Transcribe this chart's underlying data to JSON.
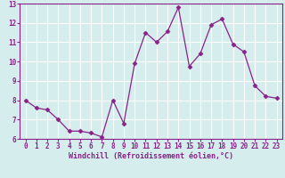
{
  "x": [
    0,
    1,
    2,
    3,
    4,
    5,
    6,
    7,
    8,
    9,
    10,
    11,
    12,
    13,
    14,
    15,
    16,
    17,
    18,
    19,
    20,
    21,
    22,
    23
  ],
  "y": [
    8.0,
    7.6,
    7.5,
    7.0,
    6.4,
    6.4,
    6.3,
    6.1,
    8.0,
    6.8,
    9.9,
    11.5,
    11.0,
    11.55,
    12.8,
    9.75,
    10.4,
    11.9,
    12.2,
    10.9,
    10.5,
    8.75,
    8.2,
    8.1
  ],
  "line_color": "#882288",
  "marker": "D",
  "marker_size": 2.5,
  "bg_color": "#d5eeed",
  "grid_color": "#ffffff",
  "xlabel": "Windchill (Refroidissement éolien,°C)",
  "xlabel_color": "#882288",
  "tick_color": "#882288",
  "spine_color": "#882288",
  "ylim": [
    6,
    13
  ],
  "xlim": [
    -0.5,
    23.5
  ],
  "yticks": [
    6,
    7,
    8,
    9,
    10,
    11,
    12,
    13
  ],
  "xticks": [
    0,
    1,
    2,
    3,
    4,
    5,
    6,
    7,
    8,
    9,
    10,
    11,
    12,
    13,
    14,
    15,
    16,
    17,
    18,
    19,
    20,
    21,
    22,
    23
  ],
  "tick_fontsize": 5.5,
  "xlabel_fontsize": 6.0
}
